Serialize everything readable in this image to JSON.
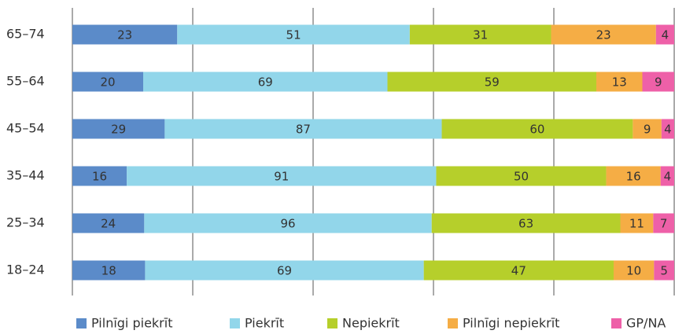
{
  "chart_data": {
    "type": "stacked_bar_100",
    "orientation": "horizontal",
    "categories": [
      "65–74",
      "55–64",
      "45–54",
      "35–44",
      "25–34",
      "18–24"
    ],
    "series": [
      {
        "name": "Pilnīgi piekrīt",
        "color": "#5b8bc9",
        "values": [
          23,
          20,
          29,
          16,
          24,
          18
        ]
      },
      {
        "name": "Piekrīt",
        "color": "#92d6ea",
        "values": [
          51,
          69,
          87,
          91,
          96,
          69
        ]
      },
      {
        "name": "Nepiekrīt",
        "color": "#b6cf2b",
        "values": [
          31,
          59,
          60,
          50,
          63,
          47
        ]
      },
      {
        "name": "Pilnīgi nepiekrīt",
        "color": "#f5ad45",
        "values": [
          23,
          13,
          9,
          16,
          11,
          10
        ]
      },
      {
        "name": "GP/NA",
        "color": "#ee60a8",
        "values": [
          4,
          9,
          4,
          4,
          7,
          5
        ]
      }
    ],
    "xlim": [
      0,
      100
    ],
    "xticks": [
      0,
      20,
      40,
      60,
      80,
      100
    ],
    "grid": true,
    "legend": "bottom"
  }
}
